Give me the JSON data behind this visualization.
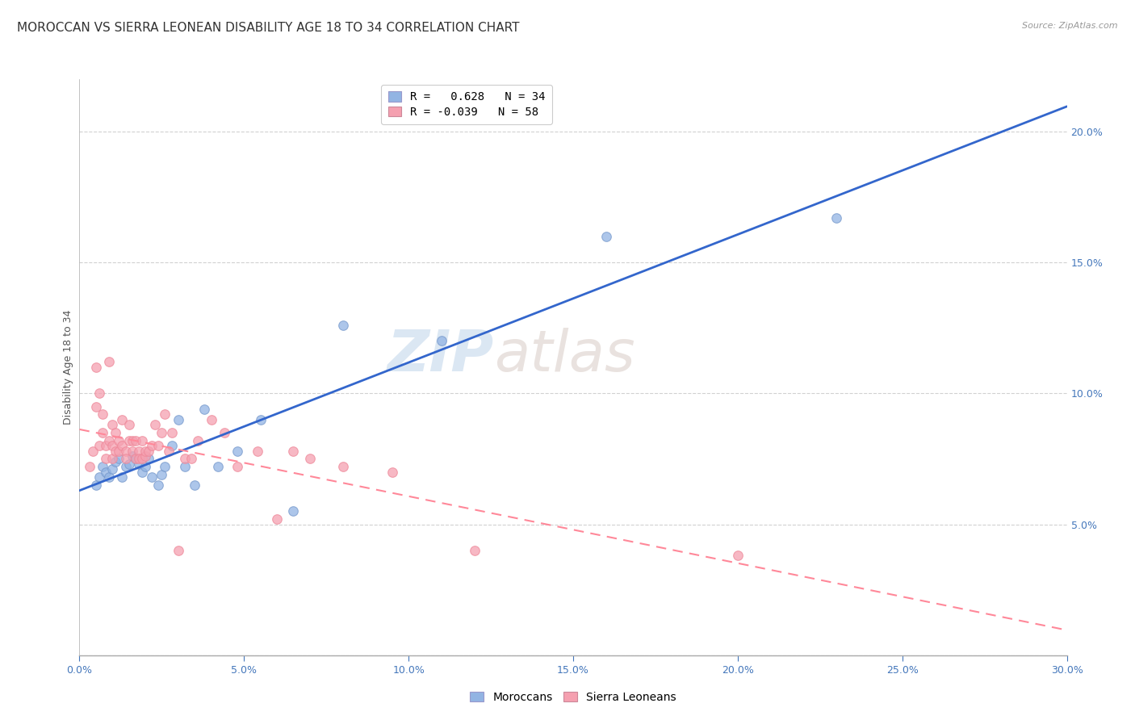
{
  "title": "MOROCCAN VS SIERRA LEONEAN DISABILITY AGE 18 TO 34 CORRELATION CHART",
  "source": "Source: ZipAtlas.com",
  "ylabel": "Disability Age 18 to 34",
  "xlim": [
    0.0,
    0.3
  ],
  "ylim": [
    0.0,
    0.22
  ],
  "xticks": [
    0.0,
    0.05,
    0.1,
    0.15,
    0.2,
    0.25,
    0.3
  ],
  "xtick_labels": [
    "0.0%",
    "5.0%",
    "10.0%",
    "15.0%",
    "20.0%",
    "25.0%",
    "30.0%"
  ],
  "yticks": [
    0.0,
    0.05,
    0.1,
    0.15,
    0.2
  ],
  "ytick_labels_right": [
    "",
    "5.0%",
    "10.0%",
    "15.0%",
    "20.0%"
  ],
  "moroccan_R": 0.628,
  "moroccan_N": 34,
  "sierraleonean_R": -0.039,
  "sierraleonean_N": 58,
  "moroccan_color": "#92B4E3",
  "sierraleonean_color": "#F5A0B0",
  "moroccan_line_color": "#3366CC",
  "sierraleonean_line_color": "#FF8899",
  "watermark_zip": "ZIP",
  "watermark_atlas": "atlas",
  "moroccan_x": [
    0.005,
    0.006,
    0.007,
    0.008,
    0.009,
    0.01,
    0.011,
    0.012,
    0.013,
    0.014,
    0.015,
    0.016,
    0.017,
    0.018,
    0.019,
    0.02,
    0.021,
    0.022,
    0.024,
    0.025,
    0.026,
    0.028,
    0.03,
    0.032,
    0.035,
    0.038,
    0.042,
    0.048,
    0.055,
    0.065,
    0.08,
    0.11,
    0.16,
    0.23
  ],
  "moroccan_y": [
    0.065,
    0.068,
    0.072,
    0.07,
    0.068,
    0.071,
    0.074,
    0.075,
    0.068,
    0.072,
    0.073,
    0.076,
    0.075,
    0.073,
    0.07,
    0.072,
    0.075,
    0.068,
    0.065,
    0.069,
    0.072,
    0.08,
    0.09,
    0.072,
    0.065,
    0.094,
    0.072,
    0.078,
    0.09,
    0.055,
    0.126,
    0.12,
    0.16,
    0.167
  ],
  "sierraleonean_x": [
    0.003,
    0.004,
    0.005,
    0.005,
    0.006,
    0.006,
    0.007,
    0.007,
    0.008,
    0.008,
    0.009,
    0.009,
    0.01,
    0.01,
    0.01,
    0.011,
    0.011,
    0.012,
    0.012,
    0.013,
    0.013,
    0.014,
    0.014,
    0.015,
    0.015,
    0.016,
    0.016,
    0.017,
    0.017,
    0.018,
    0.018,
    0.019,
    0.019,
    0.02,
    0.02,
    0.021,
    0.022,
    0.023,
    0.024,
    0.025,
    0.026,
    0.027,
    0.028,
    0.03,
    0.032,
    0.034,
    0.036,
    0.04,
    0.044,
    0.048,
    0.054,
    0.06,
    0.065,
    0.07,
    0.08,
    0.095,
    0.12,
    0.2
  ],
  "sierraleonean_y": [
    0.072,
    0.078,
    0.095,
    0.11,
    0.08,
    0.1,
    0.085,
    0.092,
    0.08,
    0.075,
    0.082,
    0.112,
    0.075,
    0.08,
    0.088,
    0.078,
    0.085,
    0.078,
    0.082,
    0.08,
    0.09,
    0.078,
    0.075,
    0.082,
    0.088,
    0.078,
    0.082,
    0.075,
    0.082,
    0.078,
    0.075,
    0.075,
    0.082,
    0.076,
    0.078,
    0.078,
    0.08,
    0.088,
    0.08,
    0.085,
    0.092,
    0.078,
    0.085,
    0.04,
    0.075,
    0.075,
    0.082,
    0.09,
    0.085,
    0.072,
    0.078,
    0.052,
    0.078,
    0.075,
    0.072,
    0.07,
    0.04,
    0.038
  ],
  "grid_color": "#CCCCCC",
  "background_color": "#FFFFFF",
  "title_fontsize": 11,
  "axis_label_fontsize": 9,
  "tick_fontsize": 9,
  "legend_fontsize": 10
}
